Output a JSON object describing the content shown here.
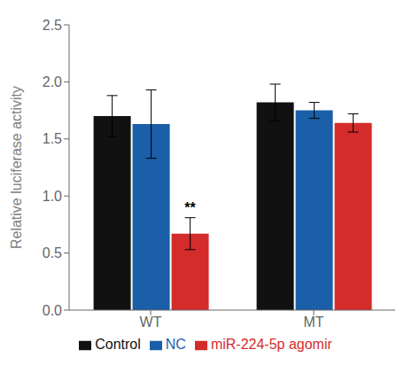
{
  "chart_data": {
    "type": "bar",
    "categories": [
      "WT",
      "MT"
    ],
    "series": [
      {
        "name": "Control",
        "color": "#111111",
        "values": [
          1.7,
          1.82
        ],
        "errors": [
          0.18,
          0.16
        ]
      },
      {
        "name": "NC",
        "color": "#1a5fa8",
        "values": [
          1.63,
          1.75
        ],
        "errors": [
          0.3,
          0.07
        ]
      },
      {
        "name": "miR-224-5p agomir",
        "color": "#d42b2b",
        "values": [
          0.67,
          1.64
        ],
        "errors": [
          0.14,
          0.08
        ]
      }
    ],
    "ylabel": "Relative luciferase activity",
    "ylim": [
      0,
      2.5
    ],
    "yticks": [
      {
        "value": 0,
        "label": "0.0"
      },
      0.5,
      {
        "value": 1,
        "label": "1.0"
      },
      1.5,
      {
        "value": 2,
        "label": "2.0"
      },
      2.5
    ],
    "annotations": [
      {
        "text": "**",
        "category": "WT",
        "series": "miR-224-5p agomir"
      }
    ],
    "legend": "bottom",
    "grid": false
  }
}
